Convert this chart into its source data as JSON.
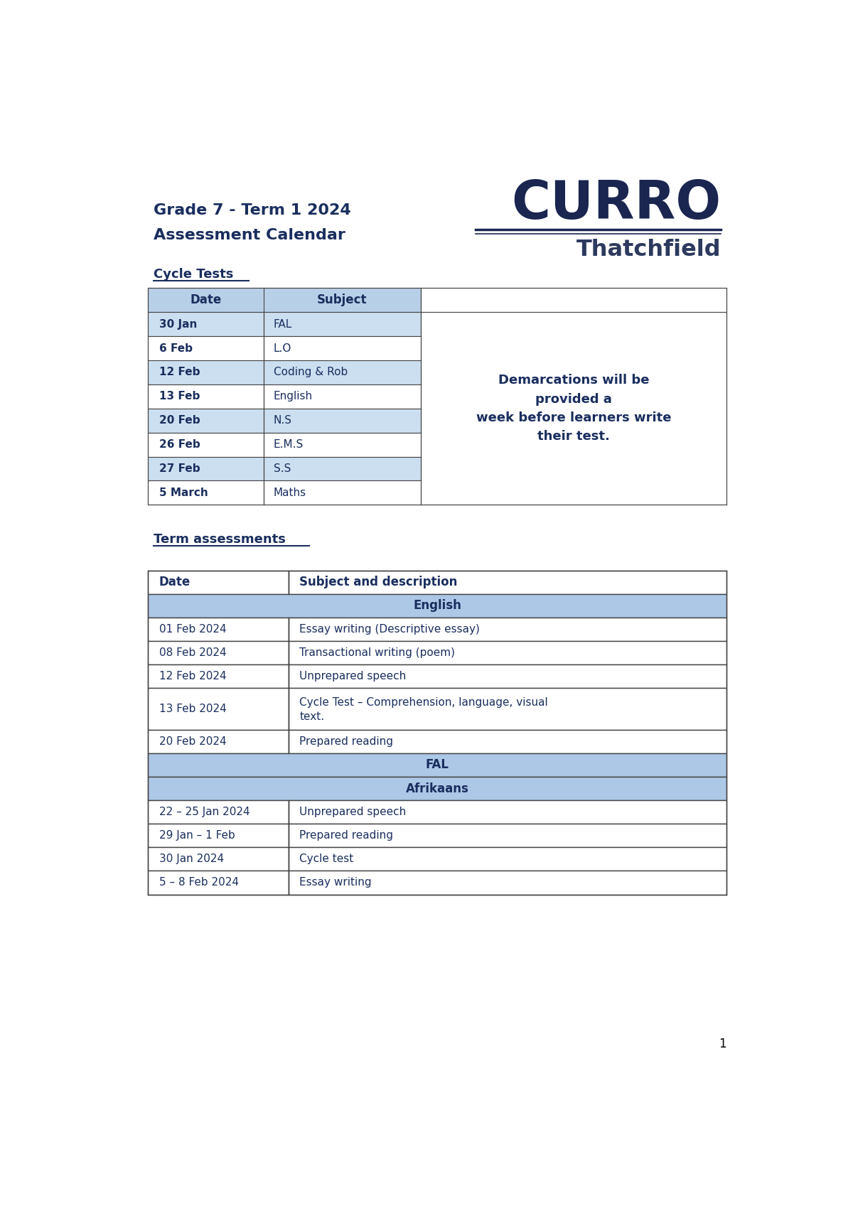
{
  "title_line1": "Grade 7 - Term 1 2024",
  "title_line2": "Assessment Calendar",
  "logo_line1": "CURRO",
  "logo_line2": "Thatchfield",
  "section1_title": "Cycle Tests",
  "cycle_rows": [
    [
      "30 Jan",
      "FAL",
      true
    ],
    [
      "6 Feb",
      "L.O",
      false
    ],
    [
      "12 Feb",
      "Coding & Rob",
      true
    ],
    [
      "13 Feb",
      "English",
      false
    ],
    [
      "20 Feb",
      "N.S",
      true
    ],
    [
      "26 Feb",
      "E.M.S",
      false
    ],
    [
      "27 Feb",
      "S.S",
      true
    ],
    [
      "5 March",
      "Maths",
      false
    ]
  ],
  "demarcation_text": "Demarcations will be\nprovided a\nweek before learners write\ntheir test.",
  "section2_title": "Term assessments",
  "term_rows": [
    {
      "type": "section",
      "text": "English"
    },
    {
      "type": "data",
      "date": "01 Feb 2024",
      "desc": "Essay writing (Descriptive essay)"
    },
    {
      "type": "data",
      "date": "08 Feb 2024",
      "desc": "Transactional writing (poem)"
    },
    {
      "type": "data",
      "date": "12 Feb 2024",
      "desc": "Unprepared speech"
    },
    {
      "type": "data_tall",
      "date": "13 Feb 2024",
      "desc": "Cycle Test – Comprehension, language, visual\ntext."
    },
    {
      "type": "data",
      "date": "20 Feb 2024",
      "desc": "Prepared reading"
    },
    {
      "type": "section",
      "text": "FAL"
    },
    {
      "type": "section",
      "text": "Afrikaans"
    },
    {
      "type": "data",
      "date": "22 – 25 Jan 2024",
      "desc": "Unprepared speech"
    },
    {
      "type": "data",
      "date": "29 Jan – 1 Feb",
      "desc": "Prepared reading"
    },
    {
      "type": "data",
      "date": "30 Jan 2024",
      "desc": "Cycle test"
    },
    {
      "type": "data",
      "date": "5 – 8 Feb 2024",
      "desc": "Essay writing"
    }
  ],
  "dark_blue": "#1a2e5e",
  "light_blue": "#ccdff0",
  "header_blue": "#b8cfe8",
  "section_blue": "#adc8e6",
  "border_color": "#444444",
  "bg_white": "#ffffff",
  "page_number": "1"
}
